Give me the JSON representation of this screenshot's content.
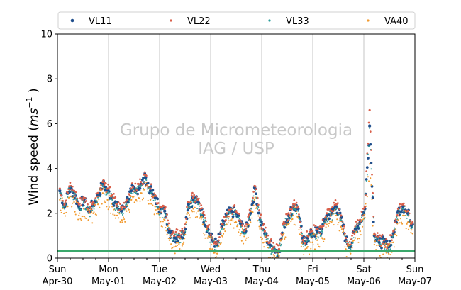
{
  "chart_data": {
    "type": "scatter",
    "ylabel_prefix": "Wind speed (",
    "ylabel_unit": "ms",
    "ylabel_exp": "−1",
    "ylabel_suffix": " )",
    "ylim": [
      0,
      10
    ],
    "yticks": [
      "0",
      "2",
      "4",
      "6",
      "8",
      "10"
    ],
    "xlim": [
      "2023-04-30T00:00",
      "2023-05-07T00:00"
    ],
    "xticks": [
      {
        "day": "Sun",
        "date": "Apr-30"
      },
      {
        "day": "Mon",
        "date": "May-01"
      },
      {
        "day": "Tue",
        "date": "May-02"
      },
      {
        "day": "Wed",
        "date": "May-03"
      },
      {
        "day": "Thu",
        "date": "May-04"
      },
      {
        "day": "Fri",
        "date": "May-05"
      },
      {
        "day": "Sat",
        "date": "May-06"
      },
      {
        "day": "Sun",
        "date": "May-07"
      }
    ],
    "grid": "vertical",
    "legend_position": "top",
    "watermark": [
      "Grupo de Micrometeorologia",
      "IAG / USP"
    ],
    "threshold": {
      "value": 0.3,
      "color": "#3aa86b"
    },
    "series": [
      {
        "name": "VL11",
        "color": "#1f4e8c",
        "values": [
          3.0,
          2.3,
          3.1,
          2.9,
          2.3,
          2.6,
          2.1,
          2.4,
          2.8,
          3.3,
          3.0,
          2.7,
          2.3,
          2.1,
          2.5,
          3.0,
          3.0,
          3.3,
          3.6,
          3.0,
          2.7,
          2.2,
          2.1,
          1.2,
          0.9,
          1.0,
          1.1,
          2.4,
          2.6,
          2.5,
          1.9,
          1.3,
          0.8,
          0.6,
          1.4,
          1.9,
          2.1,
          2.0,
          1.5,
          1.2,
          2.0,
          3.1,
          1.7,
          1.1,
          0.6,
          0.4,
          0.3,
          1.5,
          1.9,
          2.3,
          2.2,
          0.7,
          0.9,
          1.1,
          1.2,
          1.3,
          1.9,
          2.0,
          2.3,
          1.8,
          0.8,
          0.5,
          1.3,
          1.6,
          2.2,
          5.9,
          1.0,
          0.7,
          0.7,
          0.5,
          1.1,
          2.1,
          2.3,
          2.0,
          1.5
        ]
      },
      {
        "name": "VL22",
        "color": "#d95f4a",
        "values": [
          3.1,
          2.4,
          3.2,
          3.0,
          2.4,
          2.7,
          2.2,
          2.5,
          2.9,
          3.4,
          3.1,
          2.8,
          2.4,
          2.2,
          2.6,
          3.1,
          3.1,
          3.4,
          3.7,
          3.1,
          2.8,
          2.3,
          2.2,
          1.3,
          1.0,
          1.1,
          1.2,
          2.5,
          2.7,
          2.6,
          2.0,
          1.4,
          0.9,
          0.7,
          1.5,
          2.0,
          2.2,
          2.1,
          1.6,
          1.3,
          2.1,
          3.2,
          1.8,
          1.2,
          0.7,
          0.5,
          0.4,
          1.6,
          2.0,
          2.4,
          2.3,
          0.8,
          1.0,
          1.2,
          1.3,
          1.4,
          2.0,
          2.1,
          2.4,
          1.9,
          0.9,
          0.6,
          1.4,
          1.7,
          2.3,
          6.6,
          1.1,
          0.8,
          0.8,
          0.6,
          1.2,
          2.2,
          2.4,
          2.1,
          1.6
        ]
      },
      {
        "name": "VL33",
        "color": "#2a9d9b",
        "values": [
          2.9,
          2.2,
          3.0,
          2.8,
          2.2,
          2.5,
          2.0,
          2.3,
          2.7,
          3.2,
          2.9,
          2.6,
          2.2,
          2.0,
          2.4,
          2.9,
          2.9,
          3.2,
          3.5,
          2.9,
          2.6,
          2.1,
          2.0,
          1.1,
          0.8,
          0.9,
          1.0,
          2.3,
          2.5,
          2.4,
          1.8,
          1.2,
          0.7,
          0.5,
          1.3,
          1.8,
          2.0,
          1.9,
          1.4,
          1.1,
          1.9,
          3.0,
          1.6,
          1.0,
          0.5,
          0.3,
          0.3,
          1.4,
          1.8,
          2.2,
          2.1,
          0.6,
          0.8,
          1.0,
          1.1,
          1.2,
          1.8,
          1.9,
          2.2,
          1.7,
          0.7,
          0.4,
          1.2,
          1.5,
          2.1,
          5.8,
          0.9,
          0.6,
          0.6,
          0.4,
          1.0,
          2.0,
          2.2,
          1.9,
          1.4
        ]
      },
      {
        "name": "VA40",
        "color": "#f29a2e",
        "values": [
          2.6,
          2.0,
          2.7,
          2.5,
          1.9,
          2.2,
          1.7,
          2.0,
          2.4,
          2.9,
          2.6,
          2.3,
          1.9,
          1.7,
          2.1,
          2.6,
          2.6,
          2.9,
          3.2,
          2.6,
          2.3,
          1.8,
          1.7,
          0.8,
          0.5,
          0.6,
          0.7,
          2.0,
          2.2,
          2.1,
          1.5,
          0.9,
          0.4,
          0.2,
          1.0,
          1.5,
          1.7,
          1.6,
          1.1,
          0.8,
          1.6,
          2.7,
          1.3,
          0.7,
          0.3,
          0.1,
          0.1,
          1.1,
          1.5,
          1.9,
          1.8,
          0.3,
          0.5,
          0.7,
          0.8,
          0.9,
          1.5,
          1.6,
          1.9,
          1.4,
          0.4,
          0.2,
          0.9,
          1.2,
          1.8,
          4.2,
          0.6,
          0.3,
          0.3,
          0.2,
          0.7,
          1.7,
          1.9,
          1.6,
          1.1
        ]
      }
    ]
  }
}
